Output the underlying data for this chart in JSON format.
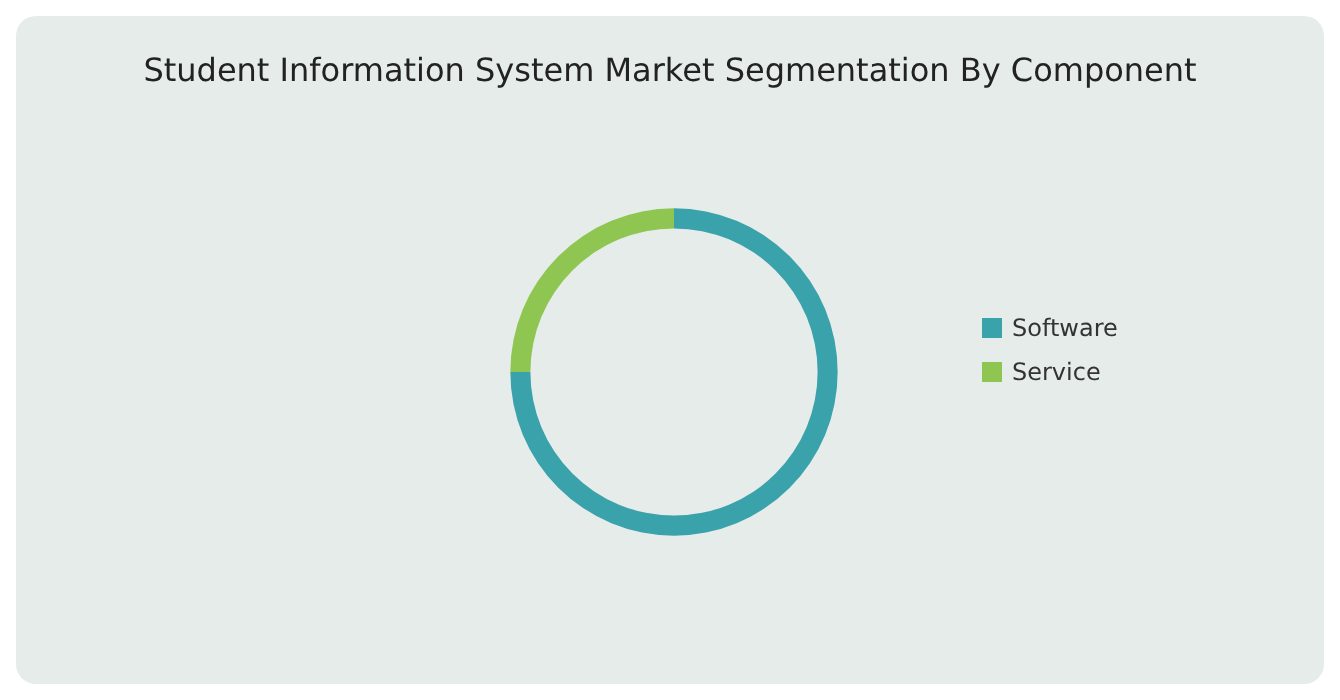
{
  "chart_data": {
    "type": "donut",
    "title": "Student Information System Market Segmentation By Component",
    "categories": [
      "Software",
      "Service"
    ],
    "values": [
      75,
      25
    ],
    "colors": [
      "#3aa2ab",
      "#8fc651"
    ],
    "legend": "right"
  }
}
